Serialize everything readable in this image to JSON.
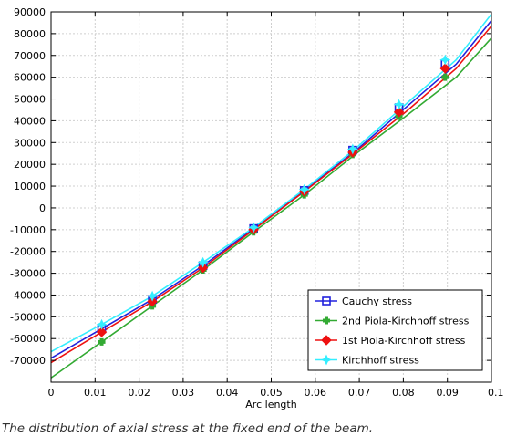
{
  "caption": "The distribution of axial stress at the fixed end of the beam.",
  "chart_data": {
    "type": "line",
    "xlabel": "Arc length",
    "ylabel": "",
    "xlim": [
      0,
      0.1
    ],
    "ylim": [
      -80000,
      90000
    ],
    "x_ticks": [
      0,
      0.01,
      0.02,
      0.03,
      0.04,
      0.05,
      0.06,
      0.07,
      0.08,
      0.09,
      0.1
    ],
    "x_tick_labels": [
      "0",
      "0.01",
      "0.02",
      "0.03",
      "0.04",
      "0.05",
      "0.06",
      "0.07",
      "0.08",
      "0.09",
      "0.1"
    ],
    "y_ticks": [
      -70000,
      -60000,
      -50000,
      -40000,
      -30000,
      -20000,
      -10000,
      0,
      10000,
      20000,
      30000,
      40000,
      50000,
      60000,
      70000,
      80000,
      90000
    ],
    "y_tick_labels": [
      "-70000",
      "-60000",
      "-50000",
      "-40000",
      "-30000",
      "-20000",
      "-10000",
      "0",
      "10000",
      "20000",
      "30000",
      "40000",
      "50000",
      "60000",
      "70000",
      "80000",
      "90000"
    ],
    "grid": true,
    "legend_position": "bottom-right",
    "series": [
      {
        "name": "Cauchy stress",
        "color": "#2222dd",
        "marker": "square",
        "x": [
          0,
          0.0115,
          0.023,
          0.0345,
          0.046,
          0.0575,
          0.069,
          0.0805,
          0.092,
          0.1
        ],
        "y": [
          -69000,
          -55500,
          -42000,
          -26500,
          -9500,
          8000,
          26000,
          46000,
          66000,
          86000
        ],
        "marker_x": [
          0.0115,
          0.023,
          0.0345,
          0.046,
          0.0575,
          0.0685,
          0.079,
          0.0895
        ],
        "marker_y": [
          -55500,
          -42000,
          -26500,
          -9500,
          8000,
          26500,
          46000,
          66000
        ]
      },
      {
        "name": "2nd Piola-Kirchhoff stress",
        "color": "#33aa33",
        "marker": "plus",
        "x": [
          0,
          0.0115,
          0.023,
          0.0345,
          0.046,
          0.0575,
          0.069,
          0.0805,
          0.092,
          0.1
        ],
        "y": [
          -78000,
          -61500,
          -45000,
          -28500,
          -11000,
          6000,
          24500,
          42000,
          60000,
          78000
        ],
        "marker_x": [
          0.0115,
          0.023,
          0.0345,
          0.046,
          0.0575,
          0.0685,
          0.079,
          0.0895
        ],
        "marker_y": [
          -61500,
          -45000,
          -28500,
          -11000,
          6000,
          24500,
          42000,
          60000
        ]
      },
      {
        "name": "1st Piola-Kirchhoff stress",
        "color": "#ee1111",
        "marker": "diamond",
        "x": [
          0,
          0.0115,
          0.023,
          0.0345,
          0.046,
          0.0575,
          0.069,
          0.0805,
          0.092,
          0.1
        ],
        "y": [
          -71000,
          -57000,
          -43000,
          -27500,
          -10000,
          7500,
          25500,
          44000,
          64000,
          83500
        ],
        "marker_x": [
          0.0115,
          0.023,
          0.0345,
          0.046,
          0.0575,
          0.0685,
          0.079,
          0.0895
        ],
        "marker_y": [
          -57000,
          -43000,
          -27500,
          -10000,
          7500,
          25500,
          44000,
          64000
        ]
      },
      {
        "name": "Kirchhoff stress",
        "color": "#33eeff",
        "marker": "star",
        "x": [
          0,
          0.0115,
          0.023,
          0.0345,
          0.046,
          0.0575,
          0.069,
          0.0805,
          0.092,
          0.1
        ],
        "y": [
          -66000,
          -53500,
          -40500,
          -25000,
          -9000,
          8500,
          27000,
          47500,
          68000,
          89000
        ],
        "marker_x": [
          0.0115,
          0.023,
          0.0345,
          0.046,
          0.0575,
          0.0685,
          0.079,
          0.0895
        ],
        "marker_y": [
          -53500,
          -40500,
          -25000,
          -9000,
          8500,
          27000,
          47500,
          68000
        ]
      }
    ]
  }
}
